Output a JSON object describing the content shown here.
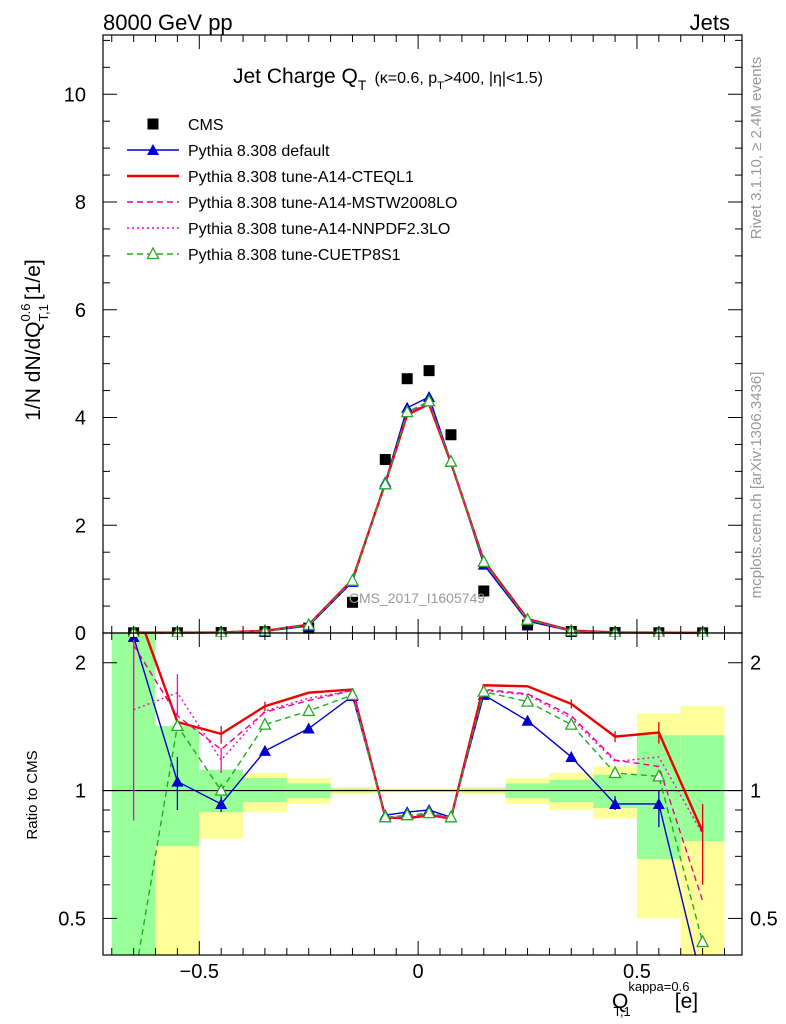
{
  "header": {
    "left": "8000 GeV pp",
    "right": "Jets"
  },
  "side_labels": {
    "rivet": "Rivet 3.1.10, ≥ 2.4M events",
    "mcplots": "mcplots.cern.ch [arXiv:1306.3436]"
  },
  "watermark": "CMS_2017_I1605749",
  "chart_data": [
    {
      "type": "scatter",
      "panel": "main",
      "title": "Jet Charge Q",
      "title_sub": "T",
      "title_note": "(κ=0.6, p",
      "title_note_sub": "T",
      "title_note_end": ">400, |η|<1.5)",
      "ylabel": "1/N dN/dQ",
      "ylabel_sup": "0.6",
      "ylabel_sub": "T,1",
      "ylabel_unit": "[1/e]",
      "xlim": [
        -0.72,
        0.74
      ],
      "ylim": [
        0,
        11.1
      ],
      "yticks": [
        0,
        2,
        4,
        6,
        8,
        10
      ],
      "legend_position": "top-left",
      "x": [
        -0.65,
        -0.55,
        -0.45,
        -0.35,
        -0.25,
        -0.15,
        -0.075,
        -0.025,
        0.025,
        0.075,
        0.15,
        0.25,
        0.35,
        0.45,
        0.55,
        0.65
      ],
      "series": [
        {
          "name": "CMS",
          "color": "#000000",
          "marker": "square",
          "line": "none",
          "values": [
            0.003,
            0.004,
            0.008,
            0.025,
            0.09,
            0.57,
            3.22,
            4.72,
            4.87,
            3.68,
            0.78,
            0.15,
            0.028,
            0.008,
            0.004,
            0.003
          ]
        },
        {
          "name": "Pythia 8.308 default",
          "color": "#0000cc",
          "marker": "triangle",
          "line": "solid",
          "values": [
            0.006,
            0.005,
            0.008,
            0.032,
            0.13,
            0.95,
            2.8,
            4.18,
            4.38,
            3.18,
            1.27,
            0.22,
            0.035,
            0.008,
            0.004,
            0.002
          ]
        },
        {
          "name": "Pythia 8.308 tune-A14-CTEQL1",
          "color": "#ee0000",
          "marker": "none",
          "line": "solid",
          "values": [
            0.007,
            0.006,
            0.011,
            0.04,
            0.155,
            0.99,
            2.78,
            4.05,
            4.25,
            3.16,
            1.34,
            0.26,
            0.045,
            0.011,
            0.006,
            0.0025
          ]
        },
        {
          "name": "Pythia 8.308 tune-A14-MSTW2008LO",
          "color": "#ee0088",
          "marker": "none",
          "line": "dashed",
          "values": [
            0.006,
            0.006,
            0.01,
            0.039,
            0.15,
            0.98,
            2.78,
            4.07,
            4.28,
            3.17,
            1.32,
            0.25,
            0.042,
            0.009,
            0.005,
            0.0018
          ]
        },
        {
          "name": "Pythia 8.308 tune-A14-NNPDF2.3LO",
          "color": "#ff00cc",
          "marker": "none",
          "line": "dotted",
          "values": [
            0.005,
            0.0068,
            0.0095,
            0.039,
            0.15,
            0.98,
            2.78,
            4.07,
            4.28,
            3.17,
            1.32,
            0.25,
            0.041,
            0.009,
            0.0048,
            0.0025
          ]
        },
        {
          "name": "Pythia 8.308 tune-CUETP8S1",
          "color": "#22aa22",
          "marker": "open-triangle",
          "line": "dashed",
          "values": [
            0.003,
            0.0057,
            0.008,
            0.038,
            0.147,
            0.97,
            2.76,
            4.1,
            4.3,
            3.18,
            1.32,
            0.245,
            0.04,
            0.0088,
            0.0046,
            0.0013
          ]
        }
      ]
    },
    {
      "type": "line",
      "panel": "ratio",
      "ylabel": "Ratio to CMS",
      "xlabel": "Q",
      "xlabel_sup": "kappa=0.6",
      "xlabel_sub": "T,1",
      "xlabel_unit": "[e]",
      "xlim": [
        -0.72,
        0.74
      ],
      "ylim": [
        0.41,
        2.35
      ],
      "yscale": "log",
      "yticks": [
        0.5,
        1,
        2
      ],
      "ytick_labels": [
        "0.5",
        "1",
        "2"
      ],
      "xticks": [
        -0.5,
        0,
        0.5
      ],
      "xtick_labels": [
        "−0.5",
        "0",
        "0.5"
      ],
      "bins": [
        {
          "x0": -0.7,
          "x1": -0.6,
          "green": [
            0.2,
            3.0
          ],
          "yellow": [
            0.2,
            3.0
          ]
        },
        {
          "x0": -0.6,
          "x1": -0.5,
          "green": [
            0.74,
            1.42
          ],
          "yellow": [
            0.2,
            1.42
          ]
        },
        {
          "x0": -0.5,
          "x1": -0.4,
          "green": [
            0.89,
            1.12
          ],
          "yellow": [
            0.77,
            1.12
          ]
        },
        {
          "x0": -0.4,
          "x1": -0.3,
          "green": [
            0.94,
            1.07
          ],
          "yellow": [
            0.89,
            1.1
          ]
        },
        {
          "x0": -0.3,
          "x1": -0.2,
          "green": [
            0.96,
            1.04
          ],
          "yellow": [
            0.93,
            1.07
          ]
        },
        {
          "x0": -0.2,
          "x1": -0.1,
          "green": [
            0.99,
            1.01
          ],
          "yellow": [
            0.98,
            1.02
          ]
        },
        {
          "x0": -0.1,
          "x1": 0.1,
          "green": [
            0.993,
            1.007
          ],
          "yellow": [
            0.99,
            1.01
          ]
        },
        {
          "x0": 0.1,
          "x1": 0.2,
          "green": [
            0.99,
            1.01
          ],
          "yellow": [
            0.98,
            1.02
          ]
        },
        {
          "x0": 0.2,
          "x1": 0.3,
          "green": [
            0.96,
            1.04
          ],
          "yellow": [
            0.93,
            1.07
          ]
        },
        {
          "x0": 0.3,
          "x1": 0.4,
          "green": [
            0.94,
            1.06
          ],
          "yellow": [
            0.9,
            1.1
          ]
        },
        {
          "x0": 0.4,
          "x1": 0.5,
          "green": [
            0.91,
            1.09
          ],
          "yellow": [
            0.86,
            1.14
          ]
        },
        {
          "x0": 0.5,
          "x1": 0.6,
          "green": [
            0.69,
            1.35
          ],
          "yellow": [
            0.5,
            1.52
          ]
        },
        {
          "x0": 0.6,
          "x1": 0.7,
          "green": [
            0.76,
            1.35
          ],
          "yellow": [
            0.4,
            1.58
          ]
        }
      ],
      "x": [
        -0.65,
        -0.55,
        -0.45,
        -0.35,
        -0.25,
        -0.15,
        -0.075,
        -0.025,
        0.025,
        0.075,
        0.15,
        0.25,
        0.35,
        0.45,
        0.55,
        0.65
      ],
      "series": [
        {
          "name": "Pythia 8.308 default",
          "color": "#0000cc",
          "marker": "triangle",
          "values": [
            2.3,
            1.05,
            0.93,
            1.24,
            1.4,
            1.67,
            0.875,
            0.89,
            0.9,
            0.865,
            1.68,
            1.46,
            1.2,
            0.93,
            0.93,
            0.35
          ],
          "errors": [
            [],
            [
              0.9,
              1.2
            ],
            [
              0.89,
              0.97
            ],
            [],
            [],
            [],
            [],
            [],
            [],
            [],
            [],
            [],
            [],
            [
              0.9,
              0.97
            ],
            [
              0.82,
              1.0
            ],
            []
          ]
        },
        {
          "name": "Pythia 8.308 tune-A14-CTEQL1",
          "color": "#ee0000",
          "marker": "none",
          "values": [
            2.8,
            1.45,
            1.36,
            1.58,
            1.7,
            1.73,
            0.865,
            0.86,
            0.875,
            0.86,
            1.77,
            1.76,
            1.6,
            1.34,
            1.37,
            0.8
          ],
          "errors": [
            [],
            [],
            [
              1.29,
              1.42
            ],
            [
              1.54,
              1.62
            ],
            [],
            [],
            [],
            [],
            [],
            [],
            [],
            [],
            [
              1.56,
              1.64
            ],
            [
              1.3,
              1.38
            ],
            [
              1.29,
              1.45
            ],
            [
              0.6,
              0.93
            ]
          ]
        },
        {
          "name": "Pythia 8.308 tune-A14-MSTW2008LO",
          "color": "#ee0088",
          "marker": "none",
          "values": [
            2.2,
            1.5,
            1.25,
            1.53,
            1.63,
            1.72,
            0.865,
            0.865,
            0.88,
            0.86,
            1.73,
            1.69,
            1.5,
            1.18,
            1.14,
            0.55
          ],
          "errors": [
            [
              1.6,
              2.6
            ],
            [],
            [],
            [],
            [],
            [],
            [],
            [],
            [],
            [],
            [],
            [],
            [],
            [],
            [],
            []
          ]
        },
        {
          "name": "Pythia 8.308 tune-A14-NNPDF2.3LO",
          "color": "#ff00cc",
          "marker": "none",
          "values": [
            1.55,
            1.7,
            1.18,
            1.54,
            1.65,
            1.72,
            0.865,
            0.865,
            0.88,
            0.86,
            1.72,
            1.68,
            1.48,
            1.17,
            1.2,
            0.79
          ],
          "errors": [
            [
              0.85,
              2.6
            ],
            [
              1.5,
              1.88
            ],
            [
              1.1,
              1.26
            ],
            [],
            [],
            [],
            [],
            [],
            [],
            [],
            [],
            [],
            [],
            [],
            [],
            []
          ]
        },
        {
          "name": "Pythia 8.308 tune-CUETP8S1",
          "color": "#22aa22",
          "marker": "open-triangle",
          "values": [
            0.35,
            1.42,
            1.0,
            1.43,
            1.54,
            1.68,
            0.865,
            0.875,
            0.885,
            0.865,
            1.71,
            1.62,
            1.43,
            1.1,
            1.08,
            0.44
          ],
          "errors": [
            [],
            [],
            [],
            [],
            [],
            [],
            [],
            [],
            [],
            [],
            [],
            [],
            [],
            [],
            [],
            []
          ]
        }
      ]
    }
  ]
}
